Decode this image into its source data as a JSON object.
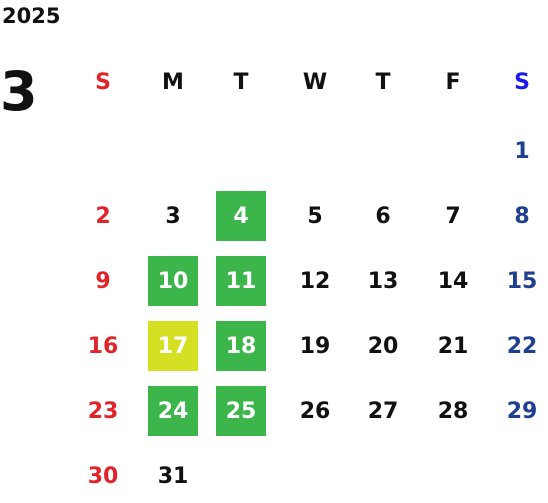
{
  "year": "2025",
  "month": "3",
  "weekdays": [
    "S",
    "M",
    "T",
    "W",
    "T",
    "F",
    "S"
  ],
  "weeks": [
    [
      null,
      null,
      null,
      null,
      null,
      null,
      1
    ],
    [
      2,
      3,
      {
        "day": 4,
        "fill": "#3cb54a"
      },
      5,
      6,
      7,
      8
    ],
    [
      9,
      {
        "day": 10,
        "fill": "#3cb54a"
      },
      {
        "day": 11,
        "fill": "#3cb54a"
      },
      12,
      13,
      14,
      15
    ],
    [
      16,
      {
        "day": 17,
        "fill": "#d4e021"
      },
      {
        "day": 18,
        "fill": "#3cb54a"
      },
      19,
      20,
      21,
      22
    ],
    [
      23,
      {
        "day": 24,
        "fill": "#3cb54a"
      },
      {
        "day": 25,
        "fill": "#3cb54a"
      },
      26,
      27,
      28,
      29
    ],
    [
      30,
      31,
      null,
      null,
      null,
      null,
      null
    ]
  ]
}
